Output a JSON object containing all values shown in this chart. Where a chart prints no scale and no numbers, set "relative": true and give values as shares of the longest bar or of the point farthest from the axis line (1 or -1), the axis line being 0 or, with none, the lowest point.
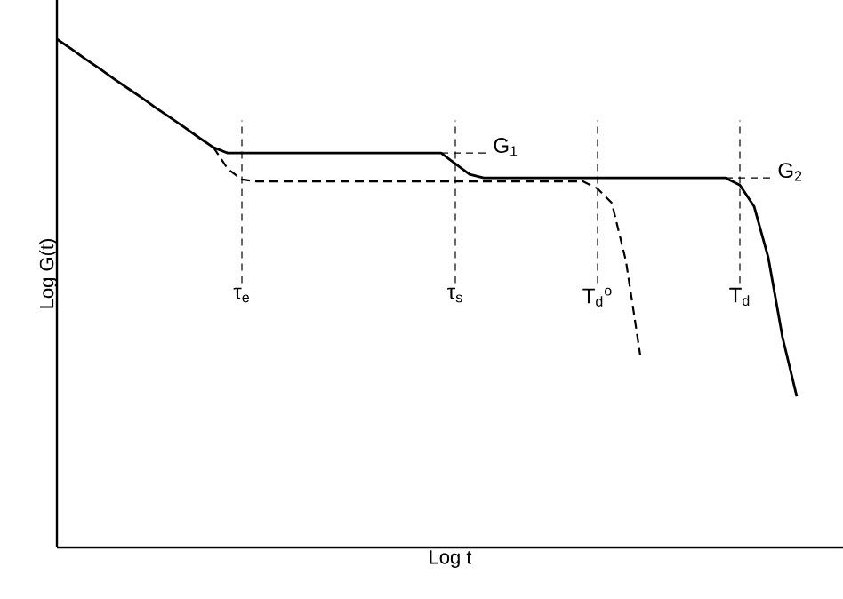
{
  "chart_data": {
    "type": "line",
    "relative": true,
    "xlabel": "Log t",
    "ylabel": "Log G(t)",
    "categories": [
      null,
      null,
      null,
      null,
      null,
      null,
      null,
      null,
      null,
      null,
      null,
      null,
      null,
      "τ$_{e}$",
      null,
      null,
      null,
      null,
      null,
      null,
      null,
      null,
      null,
      null,
      null,
      null,
      null,
      null,
      "τ$_{s}$",
      null,
      null,
      null,
      null,
      null,
      null,
      null,
      null,
      null,
      "T$_{d}$$^{o}$",
      null,
      null,
      null,
      null,
      null,
      null,
      null,
      null,
      null,
      "T$_{d}$",
      null,
      null,
      null,
      null,
      null,
      null,
      null
    ],
    "series": [
      {
        "color": "#000000",
        "line_style": "solid",
        "values": [
          1.0,
          0.981,
          0.961,
          0.942,
          0.922,
          0.903,
          0.884,
          0.864,
          0.845,
          0.826,
          0.806,
          0.787,
          0.776,
          0.776,
          0.776,
          0.776,
          0.776,
          0.776,
          0.776,
          0.776,
          0.776,
          0.776,
          0.776,
          0.776,
          0.776,
          0.776,
          0.776,
          0.776,
          0.755,
          0.734,
          0.727,
          0.727,
          0.727,
          0.727,
          0.727,
          0.727,
          0.727,
          0.727,
          0.727,
          0.727,
          0.727,
          0.727,
          0.727,
          0.727,
          0.727,
          0.727,
          0.727,
          0.727,
          0.713,
          0.671,
          0.57,
          0.413,
          0.297,
          null,
          null,
          null
        ]
      },
      {
        "color": "#000000",
        "line_style": "dashed",
        "values": [
          null,
          null,
          null,
          null,
          null,
          null,
          null,
          null,
          null,
          null,
          null,
          0.787,
          0.745,
          0.724,
          0.72,
          0.72,
          0.72,
          0.72,
          0.72,
          0.72,
          0.72,
          0.72,
          0.72,
          0.72,
          0.72,
          0.72,
          0.72,
          0.72,
          0.72,
          0.72,
          0.72,
          0.72,
          0.72,
          0.72,
          0.72,
          0.72,
          0.72,
          0.72,
          0.706,
          0.678,
          0.563,
          0.378,
          null,
          null,
          null,
          null,
          null,
          null,
          null,
          null,
          null,
          null,
          null,
          null,
          null,
          null
        ]
      }
    ],
    "ref_lines": [
      {
        "axis": "x",
        "value": "τ$_{e}$",
        "line_style": "dashed"
      },
      {
        "axis": "x",
        "value": "τ$_{s}$",
        "line_style": "dashed"
      },
      {
        "axis": "x",
        "value": "T$_{d}$$^{o}$",
        "line_style": "dashed"
      },
      {
        "axis": "x",
        "value": "T$_{d}$",
        "line_style": "dashed"
      },
      {
        "axis": "y",
        "value": 0.776,
        "label": "G$_{1}$",
        "line_style": "dashed"
      },
      {
        "axis": "y",
        "value": 0.727,
        "label": "G$_{2}$",
        "line_style": "dashed"
      }
    ],
    "marker": "none"
  }
}
